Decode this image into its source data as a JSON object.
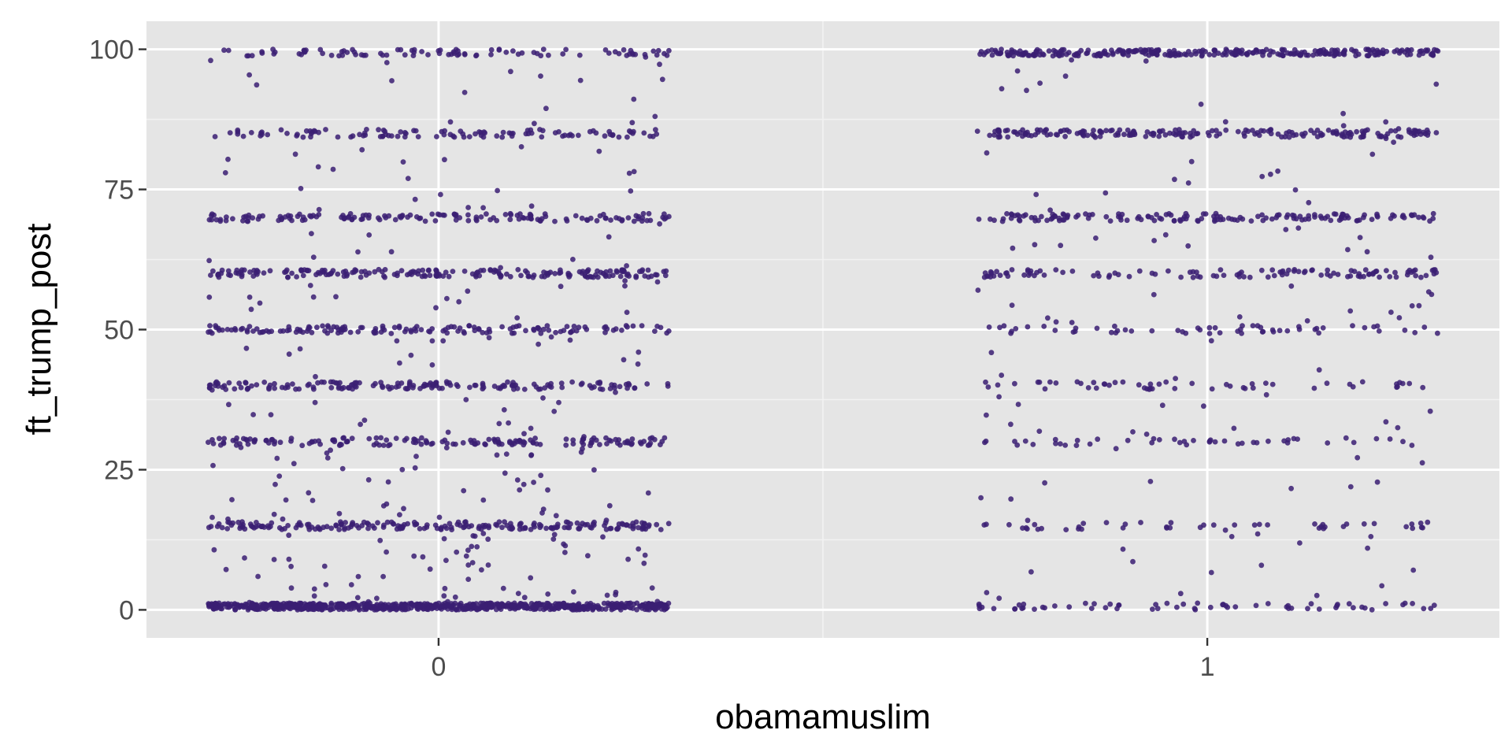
{
  "chart_data": {
    "type": "scatter",
    "title": "",
    "xlabel": "obamamuslim",
    "ylabel": "ft_trump_post",
    "x_categories": [
      "0",
      "1"
    ],
    "x_jitter_halfwidth": 0.3,
    "xlim": [
      -0.38,
      1.38
    ],
    "ylim": [
      -5,
      105
    ],
    "y_ticks": [
      0,
      25,
      50,
      75,
      100
    ],
    "y_tick_labels": [
      "0",
      "25",
      "50",
      "75",
      "100"
    ],
    "x_tick_labels": [
      "0",
      "1"
    ],
    "grid": true,
    "point_color": "#3b1f73",
    "panel_background": "#e5e5e5",
    "series": [
      {
        "x_category": "0",
        "approx_point_count": 2400,
        "y_level_counts": [
          {
            "y": 0,
            "n": 700
          },
          {
            "y": 15,
            "n": 210
          },
          {
            "y": 30,
            "n": 160
          },
          {
            "y": 40,
            "n": 160
          },
          {
            "y": 50,
            "n": 150
          },
          {
            "y": 60,
            "n": 200
          },
          {
            "y": 70,
            "n": 150
          },
          {
            "y": 85,
            "n": 110
          },
          {
            "y": 100,
            "n": 90
          }
        ],
        "scattered_between_levels": 250
      },
      {
        "x_category": "1",
        "approx_point_count": 1100,
        "y_level_counts": [
          {
            "y": 0,
            "n": 60
          },
          {
            "y": 15,
            "n": 45
          },
          {
            "y": 30,
            "n": 45
          },
          {
            "y": 40,
            "n": 50
          },
          {
            "y": 50,
            "n": 55
          },
          {
            "y": 60,
            "n": 110
          },
          {
            "y": 70,
            "n": 150
          },
          {
            "y": 85,
            "n": 200
          },
          {
            "y": 100,
            "n": 300
          }
        ],
        "scattered_between_levels": 120
      }
    ]
  }
}
